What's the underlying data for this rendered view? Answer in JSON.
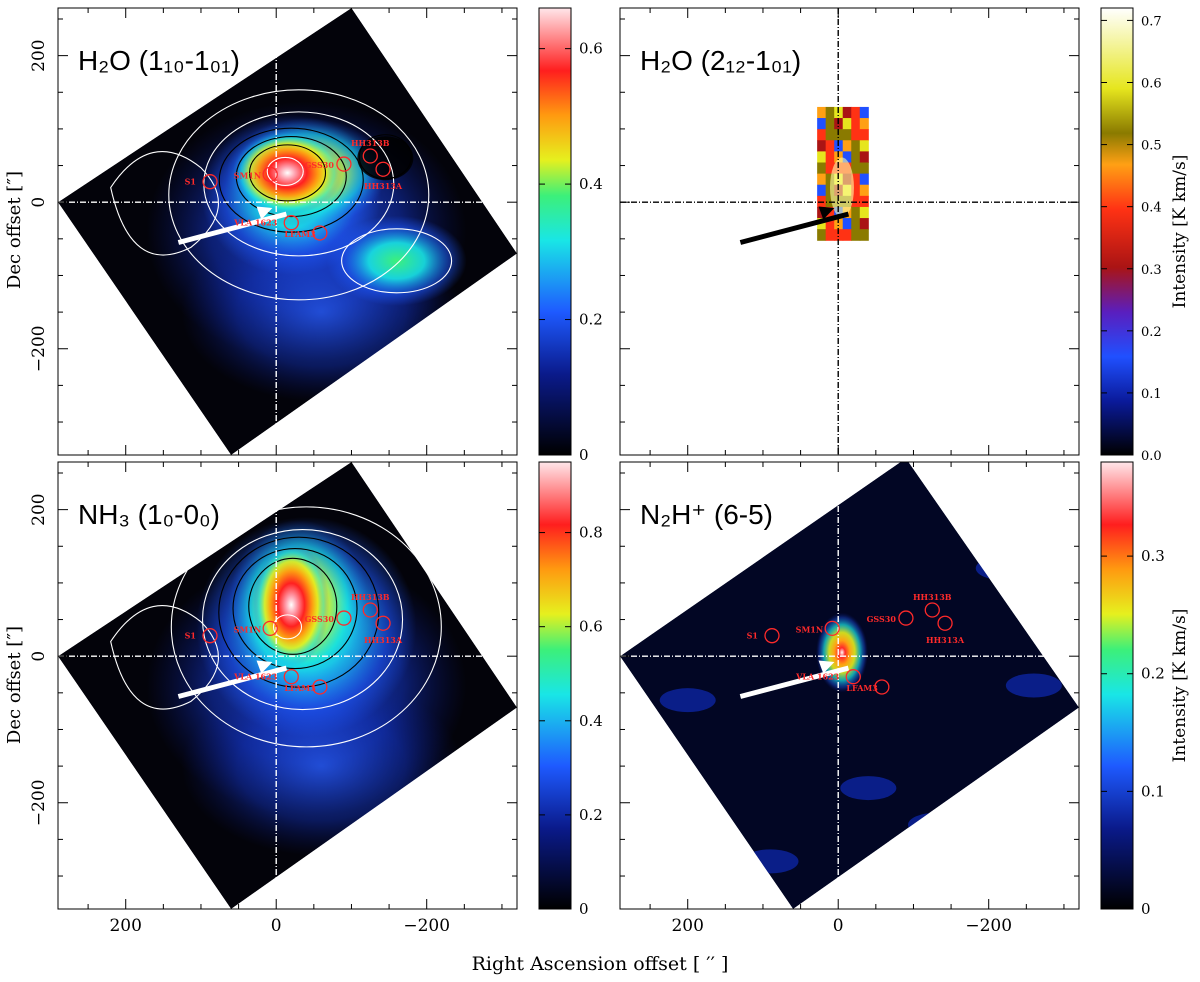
{
  "chart_data": {
    "type": "heatmap",
    "xlabel": "Right Ascension offset [ ′′ ]",
    "ylabel": "Dec offset [″]",
    "xlim": [
      290,
      -320
    ],
    "ylim": [
      -345,
      265
    ],
    "x_ticks": [
      200,
      0,
      -200
    ],
    "y_ticks": [
      200,
      0,
      -200
    ],
    "panels": [
      {
        "id": "h2o-110",
        "title": "H₂O (1₁₀-1₀₁)",
        "colormap": "blue-cyan-yellow-red-white",
        "colorbar_range": [
          0,
          0.66
        ],
        "colorbar_ticks": [
          "0",
          "0.2",
          "0.4",
          "0.6"
        ],
        "colorbar_label": "",
        "sources": [
          {
            "label": "S1",
            "x": 88,
            "y": 28
          },
          {
            "label": "SM1N",
            "x": 8,
            "y": 38
          },
          {
            "label": "GSS30",
            "x": -90,
            "y": 52
          },
          {
            "label": "HH313B",
            "x": -125,
            "y": 63
          },
          {
            "label": "HH313A",
            "x": -142,
            "y": 45
          },
          {
            "label": "VLA 1623",
            "x": -20,
            "y": -28
          },
          {
            "label": "LFAM3",
            "x": -58,
            "y": -42
          }
        ]
      },
      {
        "id": "h2o-212",
        "title": "H₂O (2₁₂-1₀₁)",
        "colormap": "black-blue-purple-red-orange-yellow-white",
        "colorbar_range": [
          0,
          0.72
        ],
        "colorbar_ticks": [
          "0.0",
          "0.1",
          "0.2",
          "0.3",
          "0.4",
          "0.5",
          "0.6",
          "0.7"
        ],
        "colorbar_label": "Intensity [K km/s]",
        "sources": []
      },
      {
        "id": "nh3",
        "title": "NH₃ (1₀-0₀)",
        "colormap": "blue-cyan-yellow-red-white",
        "colorbar_range": [
          0,
          0.95
        ],
        "colorbar_ticks": [
          "0",
          "0.2",
          "0.4",
          "0.6",
          "0.8"
        ],
        "colorbar_label": "",
        "sources": [
          {
            "label": "S1",
            "x": 88,
            "y": 28
          },
          {
            "label": "SM1N",
            "x": 8,
            "y": 38
          },
          {
            "label": "GSS30",
            "x": -90,
            "y": 52
          },
          {
            "label": "HH313B",
            "x": -125,
            "y": 63
          },
          {
            "label": "HH313A",
            "x": -142,
            "y": 45
          },
          {
            "label": "VLA 1623",
            "x": -20,
            "y": -28
          },
          {
            "label": "LFAM3",
            "x": -58,
            "y": -42
          }
        ]
      },
      {
        "id": "n2h",
        "title": "N₂H⁺ (6-5)",
        "colormap": "blue-cyan-yellow-red-white",
        "colorbar_range": [
          0,
          0.38
        ],
        "colorbar_ticks": [
          "0",
          "0.1",
          "0.2",
          "0.3"
        ],
        "colorbar_label": "Intensity [K km/s]",
        "sources": [
          {
            "label": "S1",
            "x": 88,
            "y": 28
          },
          {
            "label": "SM1N",
            "x": 8,
            "y": 38
          },
          {
            "label": "GSS30",
            "x": -90,
            "y": 52
          },
          {
            "label": "HH313B",
            "x": -125,
            "y": 63
          },
          {
            "label": "HH313A",
            "x": -142,
            "y": 45
          },
          {
            "label": "VLA 1623",
            "x": -20,
            "y": -28
          },
          {
            "label": "LFAM3",
            "x": -58,
            "y": -42
          }
        ]
      }
    ]
  },
  "colors": {
    "axis": "#000000",
    "crosshair_light": "#ffffff",
    "crosshair_dark": "#000000",
    "source_marker": "#ff2a2a",
    "contour_light": "#ffffff",
    "contour_dark": "#000000"
  }
}
